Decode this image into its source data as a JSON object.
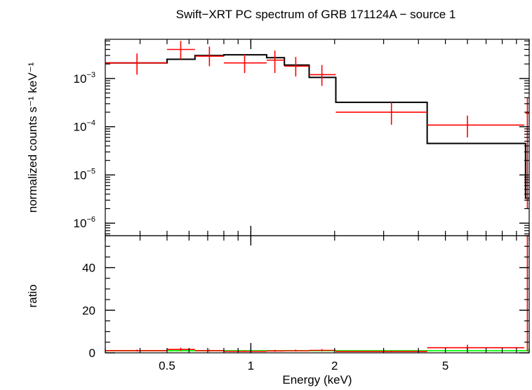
{
  "chart_data": {
    "type": "line",
    "title": "Swift−XRT PC spectrum of GRB 171124A − source 1",
    "xlabel": "Energy (keV)",
    "xscale": "log",
    "xlim": [
      0.3,
      10
    ],
    "x_ticklabels": [
      "0.5",
      "1",
      "2",
      "5"
    ],
    "top_panel": {
      "ylabel": "normalized counts s⁻¹ keV⁻¹",
      "yscale": "log",
      "ylim": [
        5.5e-07,
        0.0065
      ],
      "y_ticklabels": [
        {
          "base": "10",
          "exp": "−3",
          "value": 0.001
        },
        {
          "base": "10",
          "exp": "−4",
          "value": 0.0001
        },
        {
          "base": "10",
          "exp": "−5",
          "value": 1e-05
        },
        {
          "base": "10",
          "exp": "−6",
          "value": 1e-06
        }
      ],
      "data": {
        "name": "",
        "color": "#ff0000",
        "points": [
          {
            "x": 0.39,
            "xlo": 0.3,
            "xhi": 0.5,
            "y": 0.0021,
            "ylo": 0.0012,
            "yhi": 0.0033
          },
          {
            "x": 0.56,
            "xlo": 0.5,
            "xhi": 0.63,
            "y": 0.004,
            "ylo": 0.0025,
            "yhi": 0.006
          },
          {
            "x": 0.71,
            "xlo": 0.63,
            "xhi": 0.8,
            "y": 0.0029,
            "ylo": 0.0018,
            "yhi": 0.0046
          },
          {
            "x": 0.95,
            "xlo": 0.8,
            "xhi": 1.14,
            "y": 0.0021,
            "ylo": 0.0013,
            "yhi": 0.0032
          },
          {
            "x": 1.22,
            "xlo": 1.14,
            "xhi": 1.32,
            "y": 0.0024,
            "ylo": 0.0013,
            "yhi": 0.0038
          },
          {
            "x": 1.45,
            "xlo": 1.32,
            "xhi": 1.62,
            "y": 0.0018,
            "ylo": 0.0011,
            "yhi": 0.0028
          },
          {
            "x": 1.8,
            "xlo": 1.62,
            "xhi": 2.02,
            "y": 0.0012,
            "ylo": 0.0007,
            "yhi": 0.0019
          },
          {
            "x": 3.2,
            "xlo": 2.02,
            "xhi": 4.3,
            "y": 0.0002,
            "ylo": 0.00011,
            "yhi": 0.00032
          },
          {
            "x": 6.0,
            "xlo": 4.3,
            "xhi": 9.6,
            "y": 0.000108,
            "ylo": 6e-05,
            "yhi": 0.00017
          },
          {
            "x": 9.85,
            "xlo": 9.7,
            "xhi": 10.0,
            "y": 0.00019,
            "ylo": 2e-06,
            "yhi": 0.0004
          }
        ]
      },
      "model": {
        "name": "",
        "color": "#000000",
        "steps": [
          {
            "xlo": 0.3,
            "xhi": 0.5,
            "y": 0.0021
          },
          {
            "xlo": 0.5,
            "xhi": 0.63,
            "y": 0.0025
          },
          {
            "xlo": 0.63,
            "xhi": 0.8,
            "y": 0.003
          },
          {
            "xlo": 0.8,
            "xhi": 1.14,
            "y": 0.0031
          },
          {
            "xlo": 1.14,
            "xhi": 1.32,
            "y": 0.0027
          },
          {
            "xlo": 1.32,
            "xhi": 1.62,
            "y": 0.0019
          },
          {
            "xlo": 1.62,
            "xhi": 2.02,
            "y": 0.00105
          },
          {
            "xlo": 2.02,
            "xhi": 4.3,
            "y": 0.00032
          },
          {
            "xlo": 4.3,
            "xhi": 9.7,
            "y": 4.5e-05
          },
          {
            "xlo": 9.7,
            "xhi": 10.0,
            "y": 3.3e-06
          }
        ]
      }
    },
    "bottom_panel": {
      "ylabel": "ratio",
      "yscale": "linear",
      "ylim": [
        0,
        55
      ],
      "y_ticks": [
        0,
        20,
        40
      ],
      "y_ticklabels": [
        "0",
        "20",
        "40"
      ],
      "reference_line": {
        "y": 1,
        "color": "#00ff00"
      },
      "data": {
        "name": "",
        "color": "#ff0000",
        "points": [
          {
            "x": 0.39,
            "xlo": 0.3,
            "xhi": 0.5,
            "y": 1.0,
            "ylo": 0.6,
            "yhi": 1.5
          },
          {
            "x": 0.56,
            "xlo": 0.5,
            "xhi": 0.63,
            "y": 1.6,
            "ylo": 1.0,
            "yhi": 2.4
          },
          {
            "x": 0.71,
            "xlo": 0.63,
            "xhi": 0.8,
            "y": 1.0,
            "ylo": 0.6,
            "yhi": 1.5
          },
          {
            "x": 0.95,
            "xlo": 0.8,
            "xhi": 1.14,
            "y": 0.7,
            "ylo": 0.4,
            "yhi": 1.0
          },
          {
            "x": 1.22,
            "xlo": 1.14,
            "xhi": 1.32,
            "y": 0.9,
            "ylo": 0.5,
            "yhi": 1.4
          },
          {
            "x": 1.45,
            "xlo": 1.32,
            "xhi": 1.62,
            "y": 0.95,
            "ylo": 0.6,
            "yhi": 1.5
          },
          {
            "x": 1.8,
            "xlo": 1.62,
            "xhi": 2.02,
            "y": 1.15,
            "ylo": 0.7,
            "yhi": 1.8
          },
          {
            "x": 3.2,
            "xlo": 2.02,
            "xhi": 4.3,
            "y": 0.65,
            "ylo": 0.35,
            "yhi": 1.0
          },
          {
            "x": 6.0,
            "xlo": 4.3,
            "xhi": 9.6,
            "y": 2.4,
            "ylo": 1.4,
            "yhi": 3.8
          },
          {
            "x": 9.85,
            "xlo": 9.7,
            "xhi": 10.0,
            "y": 55,
            "ylo": 0.7,
            "yhi": 55
          }
        ]
      }
    }
  }
}
